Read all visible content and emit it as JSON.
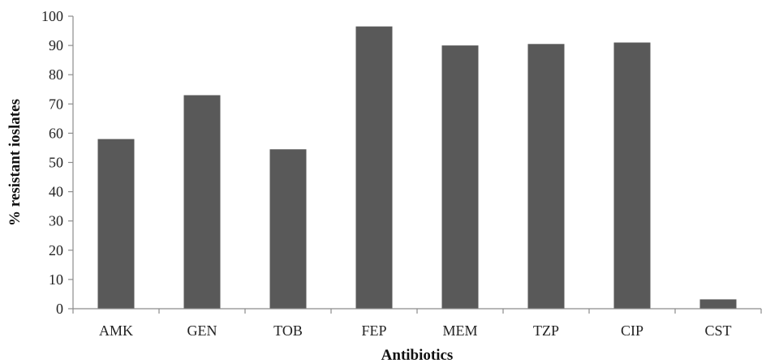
{
  "chart_data": {
    "type": "bar",
    "title": "",
    "xlabel": "Antibiotics",
    "ylabel": "% resistant ioslates",
    "categories": [
      "AMK",
      "GEN",
      "TOB",
      "FEP",
      "MEM",
      "TZP",
      "CIP",
      "CST"
    ],
    "values": [
      58,
      73,
      54.5,
      96.5,
      90,
      90.5,
      91,
      3.2
    ],
    "ylim": [
      0,
      100
    ],
    "yticks": [
      0,
      10,
      20,
      30,
      40,
      50,
      60,
      70,
      80,
      90,
      100
    ],
    "grid": false,
    "legend": "none",
    "bar_color": "#595959",
    "axis_color": "#8c8c8c"
  }
}
